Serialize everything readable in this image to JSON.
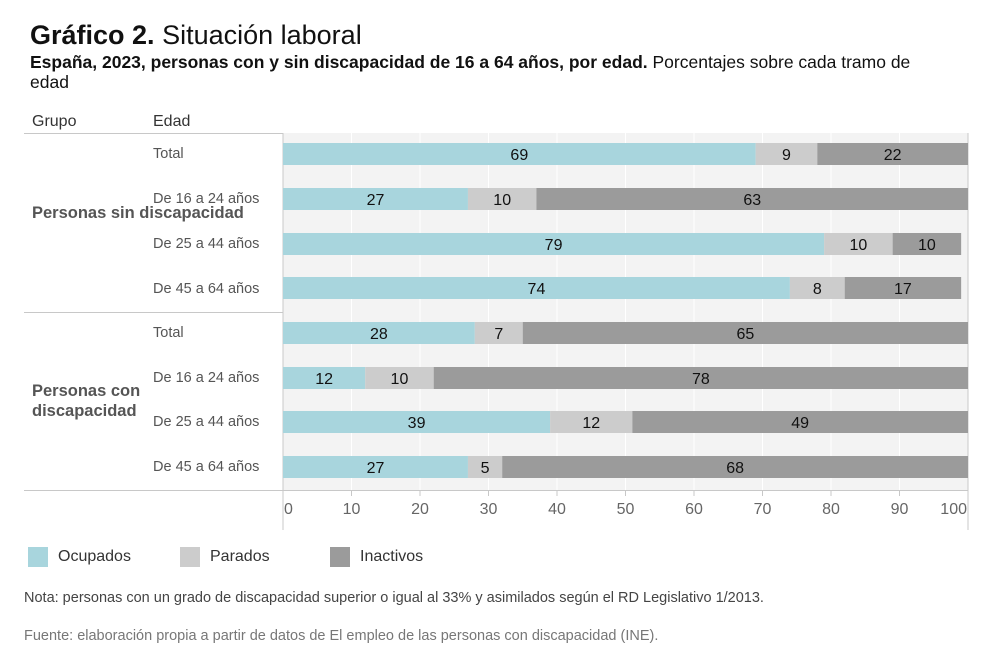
{
  "header": {
    "title_bold": "Gráfico 2.",
    "title_rest": "Situación laboral",
    "subtitle_bold": "España, 2023, personas con y sin discapacidad de 16 a 64 años, por edad.",
    "subtitle_rest": "Porcentajes sobre cada tramo de edad"
  },
  "columns": {
    "group": "Grupo",
    "age": "Edad"
  },
  "colors": {
    "ocupados": "#a8d5dd",
    "parados": "#cccccc",
    "inactivos": "#9b9b9b",
    "plot_bg": "#f3f3f3"
  },
  "chart_data": {
    "type": "bar",
    "orientation": "horizontal",
    "stacked": true,
    "title": "Gráfico 2. Situación laboral",
    "subtitle": "España, 2023, personas con y sin discapacidad de 16 a 64 años, por edad. Porcentajes sobre cada tramo de edad",
    "xlabel": "",
    "ylabel": "",
    "xlim": [
      0,
      100
    ],
    "xticks": [
      0,
      10,
      20,
      30,
      40,
      50,
      60,
      70,
      80,
      90,
      100
    ],
    "grid": true,
    "legend_position": "bottom-left",
    "groups": [
      {
        "name": "Personas sin discapacidad",
        "categories": [
          "Total",
          "De 16 a 24 años",
          "De 25 a 44 años",
          "De 45 a 64 años"
        ]
      },
      {
        "name": "Personas con discapacidad",
        "categories": [
          "Total",
          "De 16 a 24 años",
          "De 25 a 44 años",
          "De 45 a 64 años"
        ]
      }
    ],
    "series": [
      {
        "name": "Ocupados",
        "values": [
          69,
          27,
          79,
          74,
          28,
          12,
          39,
          27
        ]
      },
      {
        "name": "Parados",
        "values": [
          9,
          10,
          10,
          8,
          7,
          10,
          12,
          5
        ]
      },
      {
        "name": "Inactivos",
        "values": [
          22,
          63,
          10,
          17,
          65,
          78,
          49,
          68
        ]
      }
    ]
  },
  "legend": [
    {
      "label": "Ocupados",
      "color": "#a8d5dd"
    },
    {
      "label": "Parados",
      "color": "#cccccc"
    },
    {
      "label": "Inactivos",
      "color": "#9b9b9b"
    }
  ],
  "footer": {
    "note": "Nota: personas con un grado de discapacidad superior o igual al 33% y asimilados según el RD Legislativo 1/2013.",
    "source": "Fuente: elaboración propia a partir de datos de El empleo de las personas con discapacidad (INE)."
  }
}
